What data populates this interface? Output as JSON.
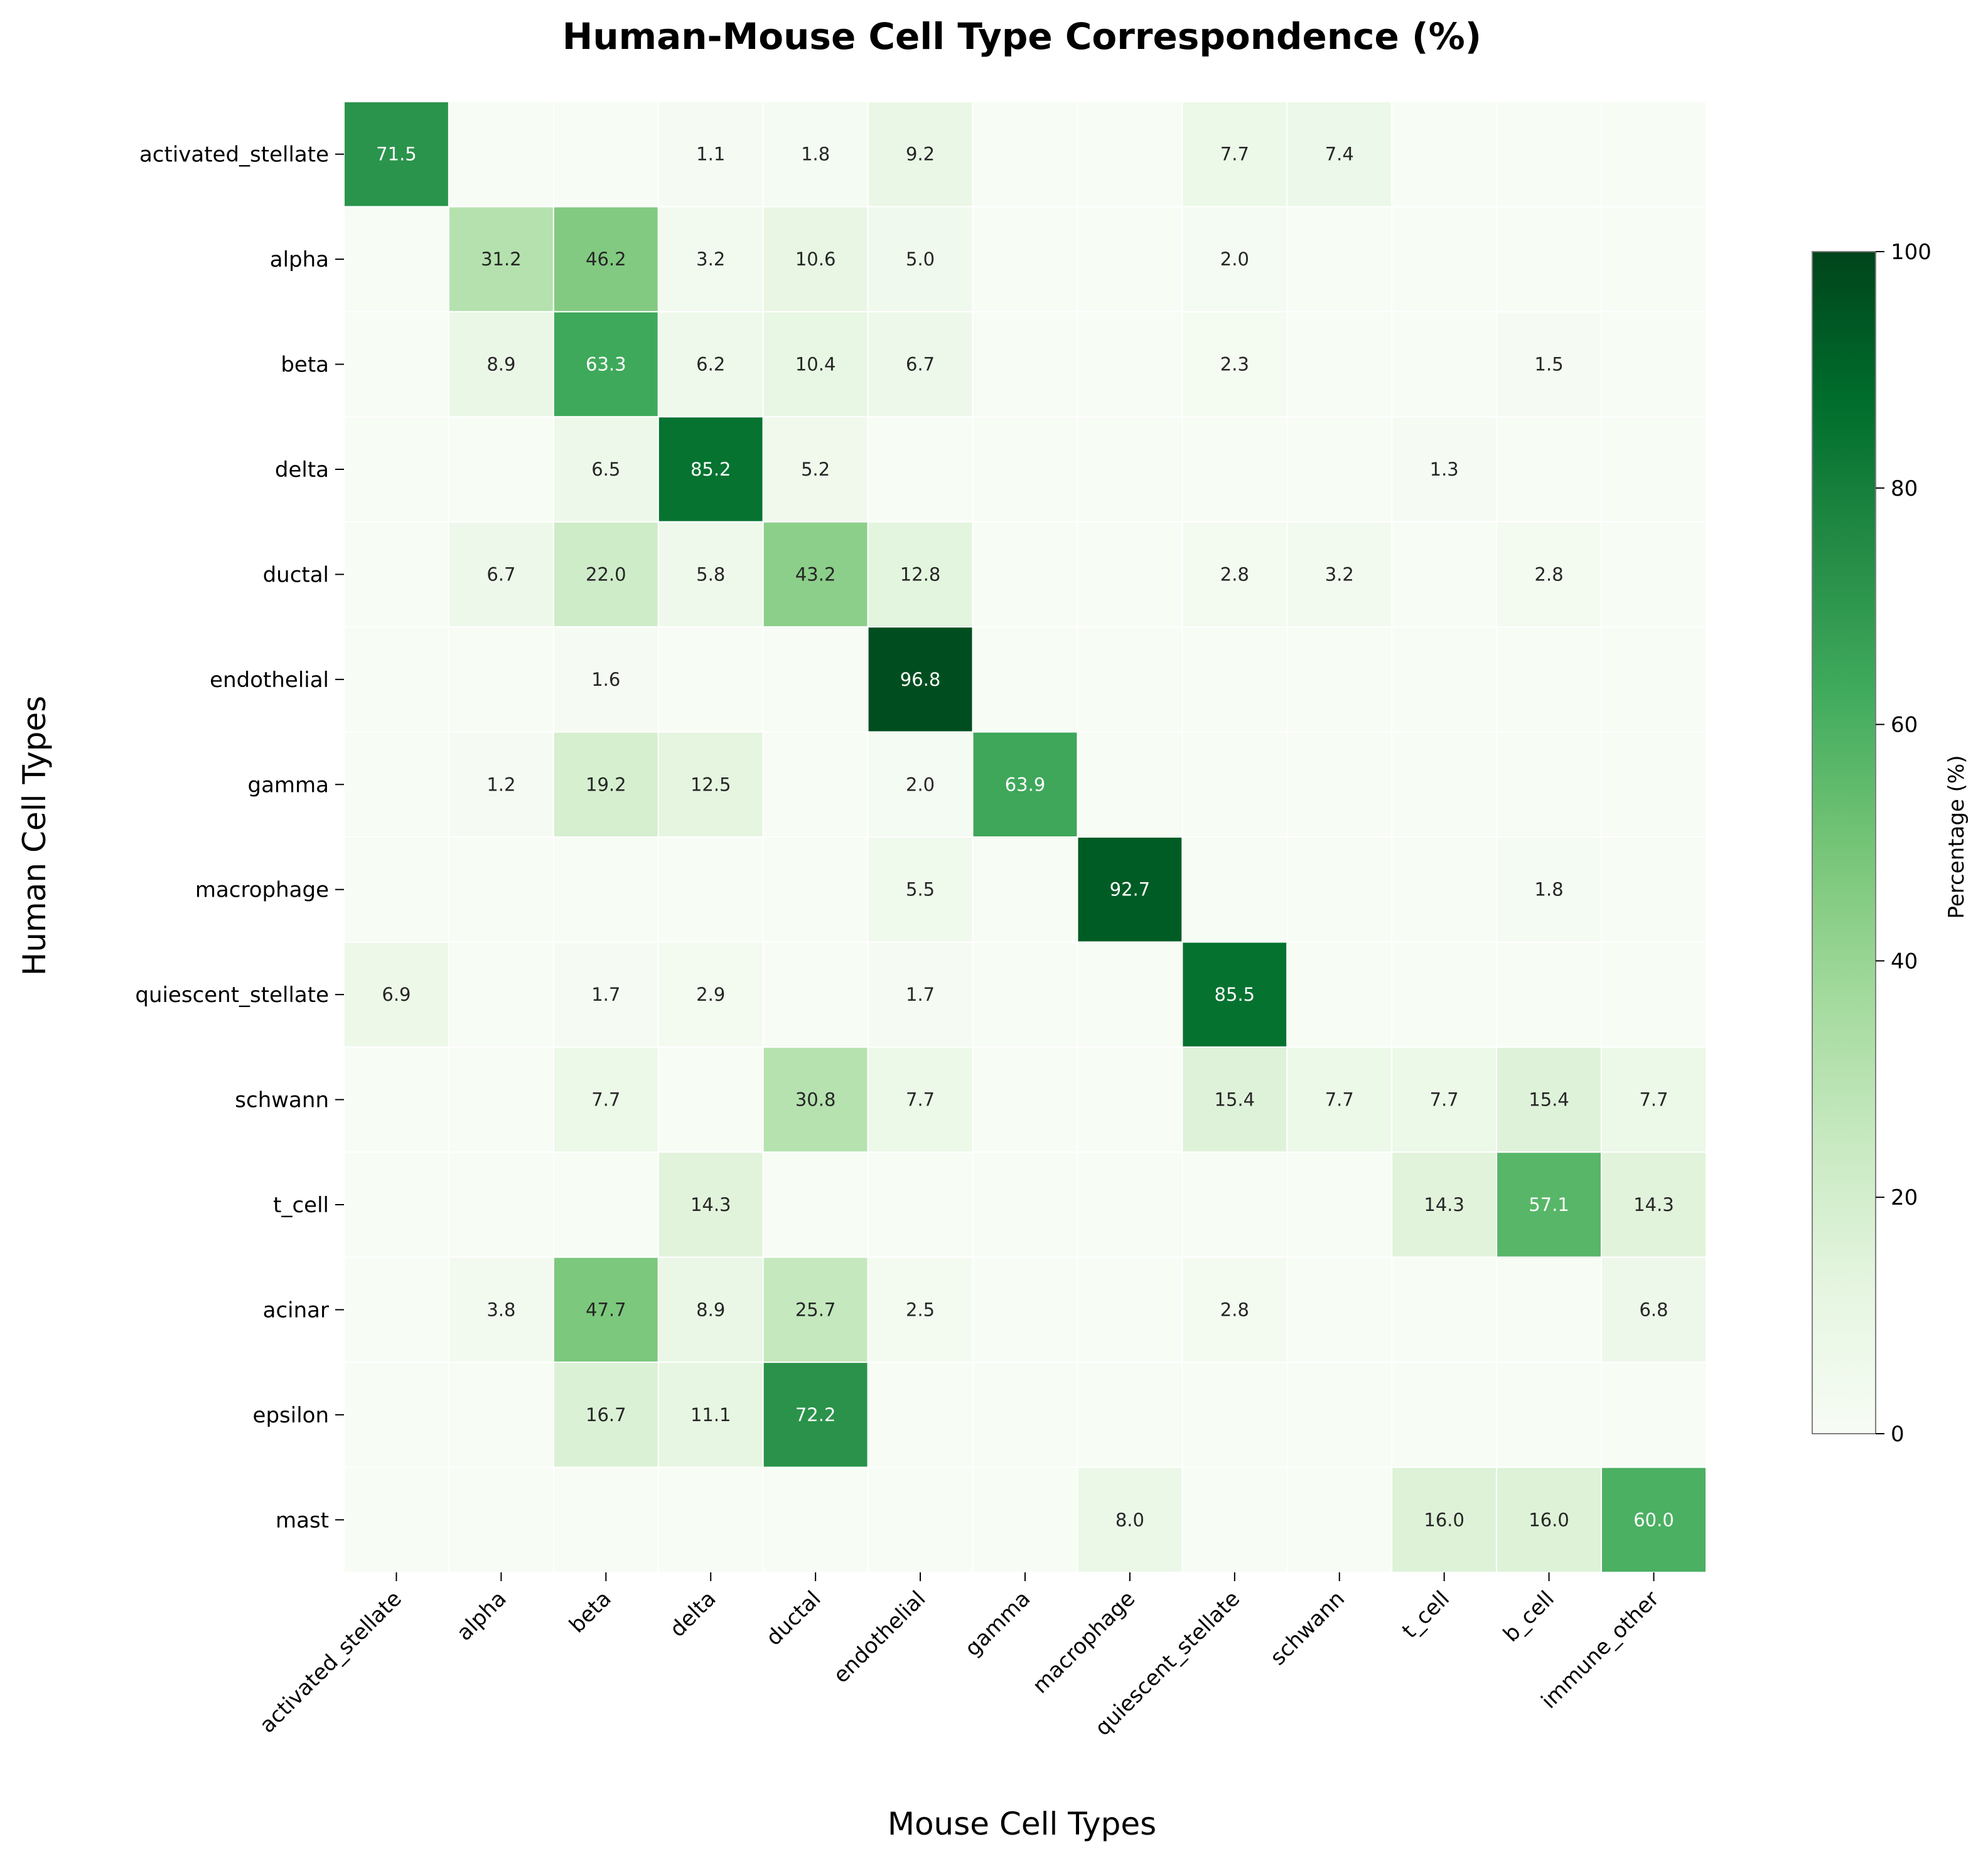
{
  "chart_data": {
    "type": "heatmap",
    "title": "Human-Mouse Cell Type Correspondence (%)",
    "xlabel": "Mouse Cell Types",
    "ylabel": "Human Cell Types",
    "x_categories": [
      "activated_stellate",
      "alpha",
      "beta",
      "delta",
      "ductal",
      "endothelial",
      "gamma",
      "macrophage",
      "quiescent_stellate",
      "schwann",
      "t_cell",
      "b_cell",
      "immune_other"
    ],
    "y_categories": [
      "activated_stellate",
      "alpha",
      "beta",
      "delta",
      "ductal",
      "endothelial",
      "gamma",
      "macrophage",
      "quiescent_stellate",
      "schwann",
      "t_cell",
      "acinar",
      "epsilon",
      "mast"
    ],
    "values": [
      [
        71.5,
        0,
        0,
        1.1,
        1.8,
        9.2,
        0,
        0,
        7.7,
        7.4,
        0,
        0,
        0
      ],
      [
        0,
        31.2,
        46.2,
        3.2,
        10.6,
        5.0,
        0,
        0,
        2.0,
        0,
        0,
        0,
        0
      ],
      [
        0,
        8.9,
        63.3,
        6.2,
        10.4,
        6.7,
        0,
        0,
        2.3,
        0,
        0,
        1.5,
        0
      ],
      [
        0,
        0,
        6.5,
        85.2,
        5.2,
        0,
        0,
        0,
        0,
        0,
        1.3,
        0,
        0
      ],
      [
        0,
        6.7,
        22.0,
        5.8,
        43.2,
        12.8,
        0,
        0,
        2.8,
        3.2,
        0,
        2.8,
        0
      ],
      [
        0,
        0,
        1.6,
        0,
        0,
        96.8,
        0,
        0,
        0,
        0,
        0,
        0,
        0
      ],
      [
        0,
        1.2,
        19.2,
        12.5,
        0,
        2.0,
        63.9,
        0,
        0,
        0,
        0,
        0,
        0
      ],
      [
        0,
        0,
        0,
        0,
        0,
        5.5,
        0,
        92.7,
        0,
        0,
        0,
        1.8,
        0
      ],
      [
        6.9,
        0,
        1.7,
        2.9,
        0,
        1.7,
        0,
        0,
        85.5,
        0,
        0,
        0,
        0
      ],
      [
        0,
        0,
        7.7,
        0,
        30.8,
        7.7,
        0,
        0,
        15.4,
        7.7,
        7.7,
        15.4,
        7.7
      ],
      [
        0,
        0,
        0,
        14.3,
        0,
        0,
        0,
        0,
        0,
        0,
        14.3,
        57.1,
        14.3
      ],
      [
        0,
        3.8,
        47.7,
        8.9,
        25.7,
        2.5,
        0,
        0,
        2.8,
        0,
        0,
        0,
        6.8
      ],
      [
        0,
        0,
        16.7,
        11.1,
        72.2,
        0,
        0,
        0,
        0,
        0,
        0,
        0,
        0
      ],
      [
        0,
        0,
        0,
        0,
        0,
        0,
        0,
        8.0,
        0,
        0,
        16.0,
        16.0,
        60.0
      ]
    ],
    "value_format": "one decimal; cells with 0 show no label",
    "colormap": "Greens",
    "vmin": 0,
    "vmax": 100,
    "colorbar": {
      "label": "Percentage (%)",
      "ticks": [
        "0",
        "20",
        "40",
        "60",
        "80",
        "100"
      ]
    }
  }
}
